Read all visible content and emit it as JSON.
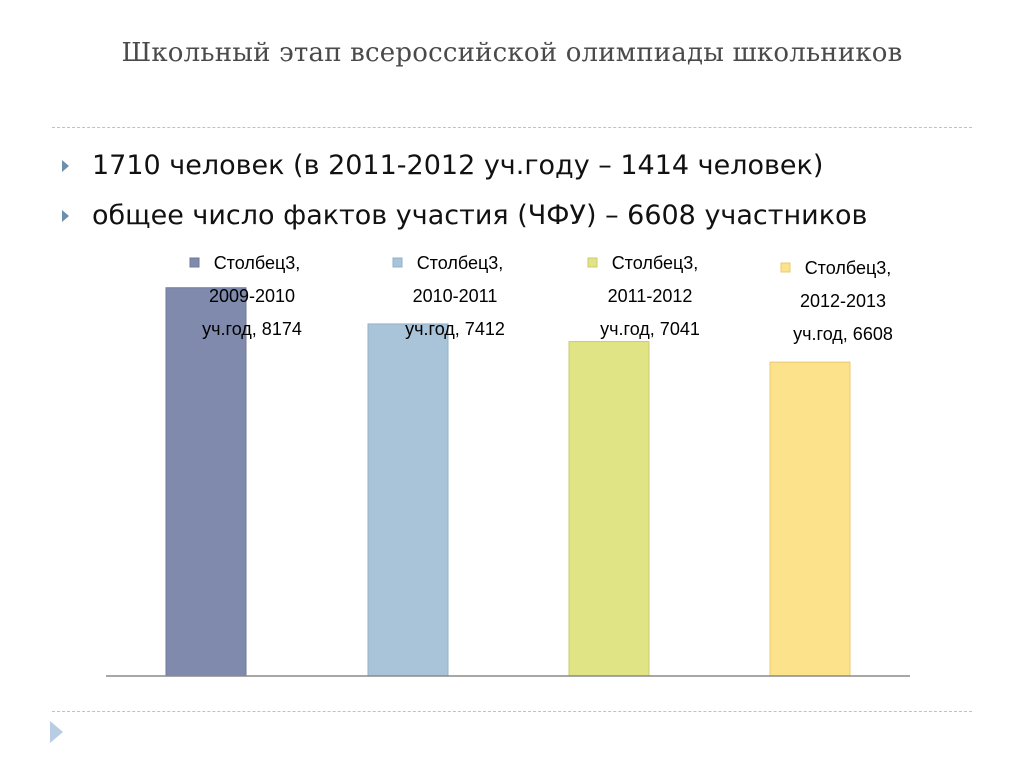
{
  "slide": {
    "title": "Школьный этап всероссийской олимпиады школьников",
    "bullets": [
      "1710 человек (в 2011-2012 уч.году – 1414 человек)",
      "общее число фактов участия (ЧФУ) – 6608 участников"
    ]
  },
  "chart_data": {
    "type": "bar",
    "categories": [
      "2009-2010 уч.год",
      "2010-2011 уч.год",
      "2011-2012 уч.год",
      "2012-2013 уч.год"
    ],
    "series": [
      {
        "name": "Столбец3",
        "values": [
          8174,
          7412,
          7041,
          6608
        ]
      }
    ],
    "bar_colors": [
      "#7f8aad",
      "#a9c3d8",
      "#e0e484",
      "#fde28c"
    ],
    "bar_borders": [
      "#6f7a9a",
      "#95b0c6",
      "#c9cd70",
      "#e7ca73"
    ],
    "data_labels": [
      [
        "Столбец3,",
        "2009-2010",
        "уч.год, 8174"
      ],
      [
        "Столбец3,",
        "2010-2011",
        "уч.год, 7412"
      ],
      [
        "Столбец3,",
        "2011-2012",
        "уч.год, 7041"
      ],
      [
        "Столбец3,",
        "2012-2013",
        "уч.год, 6608"
      ]
    ],
    "ylim": [
      0,
      10000
    ],
    "grid": false,
    "legend": "none"
  }
}
